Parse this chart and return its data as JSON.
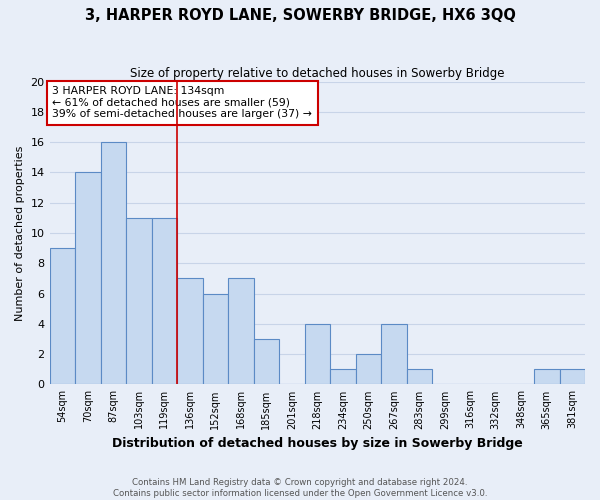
{
  "title": "3, HARPER ROYD LANE, SOWERBY BRIDGE, HX6 3QQ",
  "subtitle": "Size of property relative to detached houses in Sowerby Bridge",
  "xlabel": "Distribution of detached houses by size in Sowerby Bridge",
  "ylabel": "Number of detached properties",
  "categories": [
    "54sqm",
    "70sqm",
    "87sqm",
    "103sqm",
    "119sqm",
    "136sqm",
    "152sqm",
    "168sqm",
    "185sqm",
    "201sqm",
    "218sqm",
    "234sqm",
    "250sqm",
    "267sqm",
    "283sqm",
    "299sqm",
    "316sqm",
    "332sqm",
    "348sqm",
    "365sqm",
    "381sqm"
  ],
  "values": [
    9,
    14,
    16,
    11,
    11,
    7,
    6,
    7,
    3,
    0,
    4,
    1,
    2,
    4,
    1,
    0,
    0,
    0,
    0,
    1,
    1
  ],
  "bar_color": "#c6d9f0",
  "bar_edge_color": "#5b8ac5",
  "grid_color": "#c8d4e8",
  "bg_color": "#e8eef8",
  "red_line_index": 5,
  "annotation_line1": "3 HARPER ROYD LANE: 134sqm",
  "annotation_line2": "← 61% of detached houses are smaller (59)",
  "annotation_line3": "39% of semi-detached houses are larger (37) →",
  "footnote1": "Contains HM Land Registry data © Crown copyright and database right 2024.",
  "footnote2": "Contains public sector information licensed under the Open Government Licence v3.0.",
  "ylim": [
    0,
    20
  ],
  "yticks": [
    0,
    2,
    4,
    6,
    8,
    10,
    12,
    14,
    16,
    18,
    20
  ]
}
